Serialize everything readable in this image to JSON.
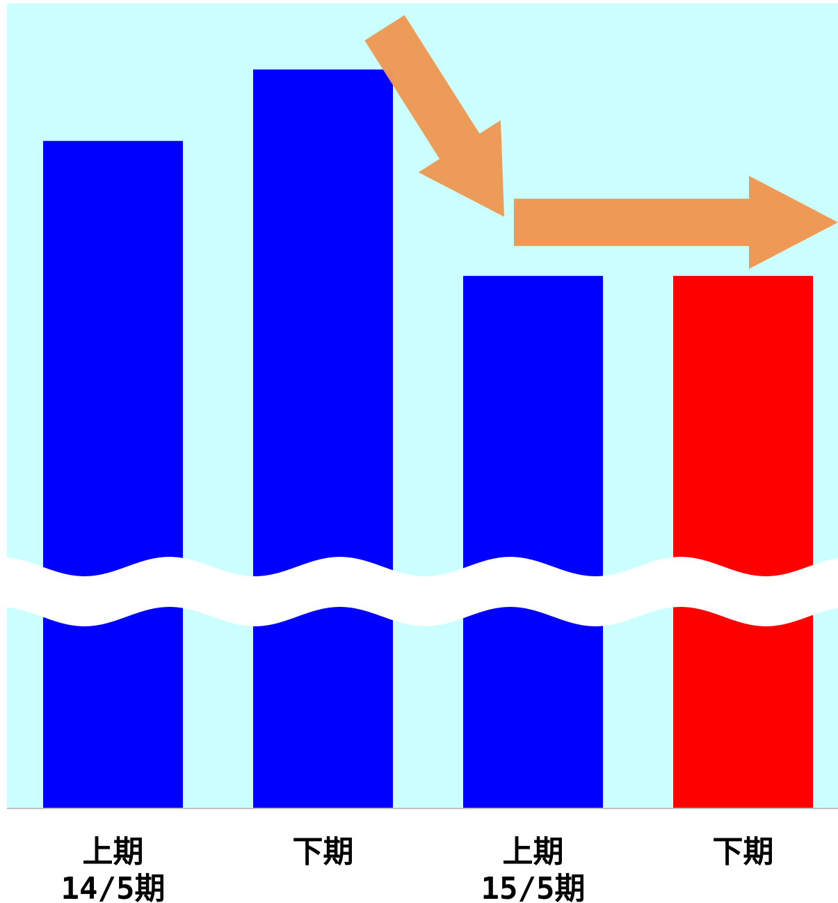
{
  "chart_data": {
    "type": "bar",
    "categories": [
      "上期",
      "下期",
      "上期",
      "下期"
    ],
    "groups": [
      {
        "label": "14/5期",
        "categories": [
          0,
          1
        ]
      },
      {
        "label": "15/5期",
        "categories": [
          2,
          3
        ]
      }
    ],
    "values": [
      84,
      93,
      67,
      67
    ],
    "ylim": [
      0,
      100
    ],
    "axis_break": true,
    "grid": false,
    "legend": "none",
    "trend_arrows": [
      "down",
      "flat"
    ],
    "colors": {
      "background": "#ccffff",
      "bars": [
        "#0000ff",
        "#0000ff",
        "#0000ff",
        "#ff0000"
      ],
      "arrow": "#ee9955",
      "break": "#ffffff",
      "axis": "#c0c0c0"
    }
  }
}
